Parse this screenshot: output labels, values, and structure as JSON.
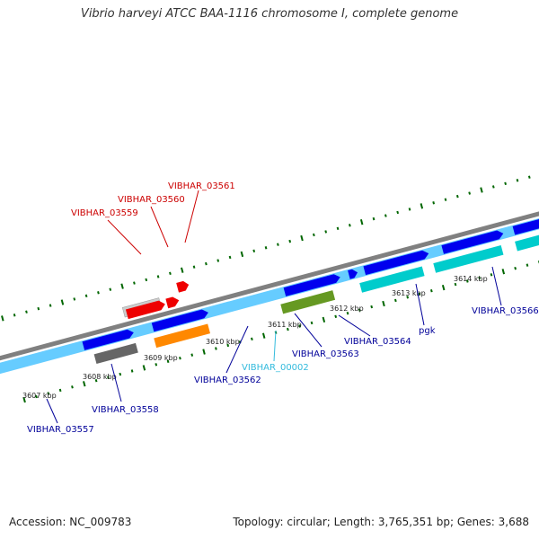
{
  "title": "Vibrio harveyi ATCC BAA-1116 chromosome I, complete genome",
  "footer": {
    "accession": "Accession: NC_009783",
    "topology": "Topology: circular; Length: 3,765,351 bp; Genes: 3,688"
  },
  "colors": {
    "backbone": "#808080",
    "forward_track": "#66ccff",
    "forward_gene": "#0000ee",
    "cds_cyan": "#00cccc",
    "label_red": "#cc0000",
    "label_blue": "#000099",
    "label_lightblue": "#33bbdd",
    "tick_green": "#006600"
  },
  "ticks": [
    {
      "label": "3607 kbp"
    },
    {
      "label": "3608 kbp"
    },
    {
      "label": "3609 kbp"
    },
    {
      "label": "3610 kbp"
    },
    {
      "label": "3611 kbp"
    },
    {
      "label": "3612 kbp"
    },
    {
      "label": "3613 kbp"
    },
    {
      "label": "3614 kbp"
    }
  ],
  "genes": [
    {
      "id": "g0",
      "label": "",
      "color": "#0000ee"
    },
    {
      "id": "g1",
      "label": "",
      "color": "#0000ee"
    },
    {
      "id": "g2",
      "label": "",
      "color": "#0000ee"
    },
    {
      "id": "g3",
      "label": "",
      "color": "#0000ee"
    },
    {
      "id": "g4",
      "label": "",
      "color": "#0000ee"
    },
    {
      "id": "g5",
      "label": "",
      "color": "#0000ee"
    },
    {
      "id": "g6",
      "label": "",
      "color": "#0000ee"
    },
    {
      "id": "g7",
      "label": "",
      "color": "#0000ee"
    },
    {
      "id": "vibhar_03559",
      "label": "VIBHAR_03559",
      "color": "#cccccc"
    },
    {
      "id": "vibhar_03560",
      "label": "VIBHAR_03560",
      "color": "#ee0000"
    },
    {
      "id": "vibhar_03561",
      "label": "VIBHAR_03561",
      "color": "#ee0000"
    },
    {
      "id": "vibhar_03557",
      "label": "VIBHAR_03557",
      "color": "#666666"
    },
    {
      "id": "vibhar_03558",
      "label": "VIBHAR_03558",
      "color": "#ff8800"
    },
    {
      "id": "vibhar_03562",
      "label": "VIBHAR_03562",
      "color": "#669922"
    },
    {
      "id": "vibhar_00002",
      "label": "VIBHAR_00002",
      "color": "#00cccc"
    },
    {
      "id": "vibhar_03563",
      "label": "VIBHAR_03563",
      "color": "#00cccc"
    },
    {
      "id": "vibhar_03564",
      "label": "VIBHAR_03564",
      "color": "#00cccc"
    },
    {
      "id": "pgk",
      "label": "pgk",
      "color": "#00cccc"
    },
    {
      "id": "vibhar_03566",
      "label": "VIBHAR_03566",
      "color": "#00cccc"
    }
  ]
}
